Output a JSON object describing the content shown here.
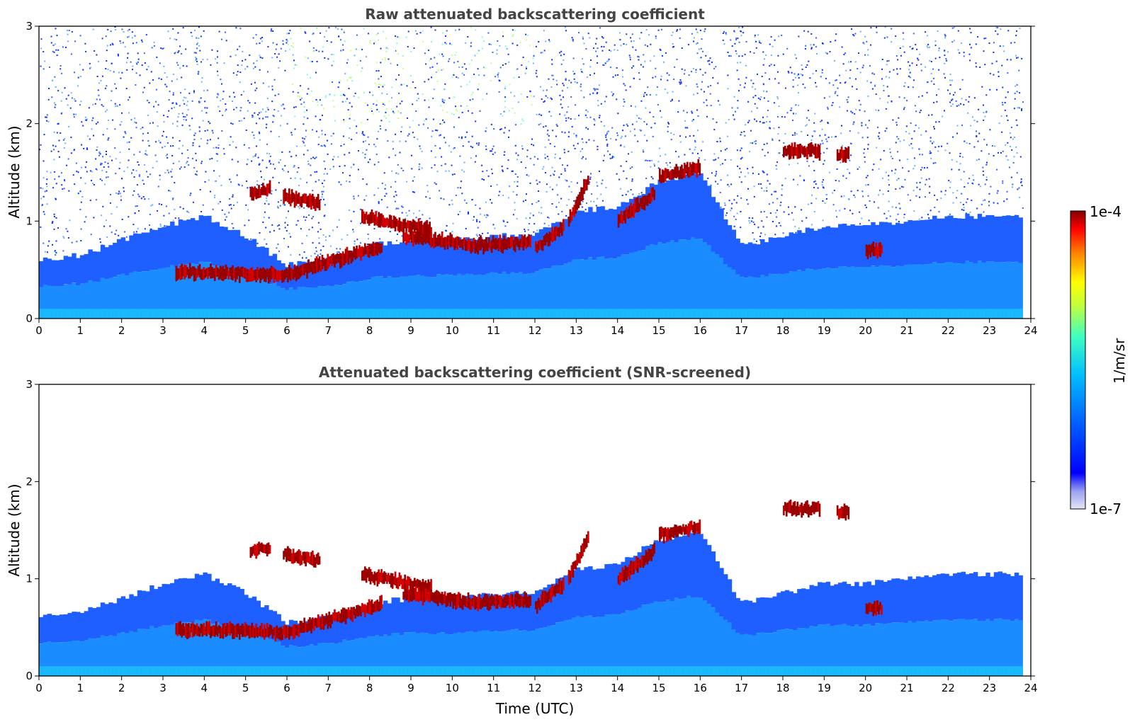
{
  "chart_data": [
    {
      "type": "heatmap",
      "title": "Raw attenuated backscattering coefficient",
      "xlabel": "",
      "ylabel": "Altitude (km)",
      "xlim": [
        0,
        24
      ],
      "ylim": [
        0,
        3
      ],
      "x_ticks": [
        "0",
        "1",
        "2",
        "3",
        "4",
        "5",
        "6",
        "7",
        "8",
        "9",
        "10",
        "11",
        "12",
        "13",
        "14",
        "15",
        "16",
        "17",
        "18",
        "19",
        "20",
        "21",
        "22",
        "23",
        "24"
      ],
      "y_ticks": [
        "0",
        "1",
        "2",
        "3"
      ],
      "data_end_time": 23.8,
      "background_noise": true,
      "aerosol_layer_top_km": {
        "time": [
          0,
          1,
          2,
          3,
          4,
          5,
          6,
          7,
          8,
          9,
          10,
          11,
          12,
          13,
          14,
          15,
          16,
          17,
          18,
          19,
          20,
          21,
          22,
          23,
          23.8
        ],
        "values": [
          0.6,
          0.65,
          0.8,
          0.95,
          1.05,
          0.85,
          0.55,
          0.6,
          0.75,
          0.8,
          0.8,
          0.85,
          0.85,
          1.1,
          1.15,
          1.4,
          1.5,
          0.75,
          0.85,
          0.95,
          0.95,
          1.0,
          1.05,
          1.05,
          1.05
        ]
      },
      "cloud_segments": [
        {
          "t0": 3.3,
          "t1": 6.0,
          "a0": 0.48,
          "a1": 0.45
        },
        {
          "t0": 6.0,
          "t1": 8.3,
          "a0": 0.45,
          "a1": 0.75
        },
        {
          "t0": 7.8,
          "t1": 9.5,
          "a0": 1.05,
          "a1": 0.9
        },
        {
          "t0": 8.8,
          "t1": 10.5,
          "a0": 0.85,
          "a1": 0.75
        },
        {
          "t0": 10.5,
          "t1": 11.9,
          "a0": 0.75,
          "a1": 0.78
        },
        {
          "t0": 12.0,
          "t1": 12.7,
          "a0": 0.72,
          "a1": 0.95
        },
        {
          "t0": 12.8,
          "t1": 13.3,
          "a0": 1.0,
          "a1": 1.45
        },
        {
          "t0": 14.0,
          "t1": 14.9,
          "a0": 1.0,
          "a1": 1.3
        },
        {
          "t0": 15.0,
          "t1": 16.0,
          "a0": 1.45,
          "a1": 1.55
        },
        {
          "t0": 18.0,
          "t1": 18.9,
          "a0": 1.72,
          "a1": 1.72
        },
        {
          "t0": 19.3,
          "t1": 19.6,
          "a0": 1.68,
          "a1": 1.68
        },
        {
          "t0": 20.0,
          "t1": 20.4,
          "a0": 0.7,
          "a1": 0.7
        },
        {
          "t0": 5.1,
          "t1": 5.6,
          "a0": 1.28,
          "a1": 1.33
        },
        {
          "t0": 5.9,
          "t1": 6.8,
          "a0": 1.25,
          "a1": 1.18
        }
      ]
    },
    {
      "type": "heatmap",
      "title": "Attenuated backscattering coefficient (SNR-screened)",
      "xlabel": "Time (UTC)",
      "ylabel": "Altitude (km)",
      "xlim": [
        0,
        24
      ],
      "ylim": [
        0,
        3
      ],
      "x_ticks": [
        "0",
        "1",
        "2",
        "3",
        "4",
        "5",
        "6",
        "7",
        "8",
        "9",
        "10",
        "11",
        "12",
        "13",
        "14",
        "15",
        "16",
        "17",
        "18",
        "19",
        "20",
        "21",
        "22",
        "23",
        "24"
      ],
      "y_ticks": [
        "0",
        "1",
        "2",
        "3"
      ],
      "data_end_time": 23.8,
      "background_noise": false,
      "aerosol_layer_top_km": {
        "time": [
          0,
          1,
          2,
          3,
          4,
          5,
          6,
          7,
          8,
          9,
          10,
          11,
          12,
          13,
          14,
          15,
          16,
          17,
          18,
          19,
          20,
          21,
          22,
          23,
          23.8
        ],
        "values": [
          0.6,
          0.65,
          0.8,
          0.95,
          1.05,
          0.85,
          0.55,
          0.6,
          0.75,
          0.8,
          0.8,
          0.85,
          0.85,
          1.1,
          1.15,
          1.4,
          1.5,
          0.75,
          0.85,
          0.95,
          0.95,
          1.0,
          1.05,
          1.05,
          1.05
        ]
      },
      "cloud_segments": [
        {
          "t0": 3.3,
          "t1": 6.0,
          "a0": 0.48,
          "a1": 0.45
        },
        {
          "t0": 6.0,
          "t1": 8.3,
          "a0": 0.45,
          "a1": 0.75
        },
        {
          "t0": 7.8,
          "t1": 9.5,
          "a0": 1.05,
          "a1": 0.9
        },
        {
          "t0": 8.8,
          "t1": 10.5,
          "a0": 0.85,
          "a1": 0.75
        },
        {
          "t0": 10.5,
          "t1": 11.9,
          "a0": 0.75,
          "a1": 0.78
        },
        {
          "t0": 12.0,
          "t1": 12.7,
          "a0": 0.72,
          "a1": 0.95
        },
        {
          "t0": 12.8,
          "t1": 13.3,
          "a0": 1.0,
          "a1": 1.45
        },
        {
          "t0": 14.0,
          "t1": 14.9,
          "a0": 1.0,
          "a1": 1.3
        },
        {
          "t0": 15.0,
          "t1": 16.0,
          "a0": 1.45,
          "a1": 1.55
        },
        {
          "t0": 18.0,
          "t1": 18.9,
          "a0": 1.72,
          "a1": 1.72
        },
        {
          "t0": 19.3,
          "t1": 19.6,
          "a0": 1.68,
          "a1": 1.68
        },
        {
          "t0": 20.0,
          "t1": 20.4,
          "a0": 0.7,
          "a1": 0.7
        },
        {
          "t0": 5.1,
          "t1": 5.6,
          "a0": 1.28,
          "a1": 1.33
        },
        {
          "t0": 5.9,
          "t1": 6.8,
          "a0": 1.25,
          "a1": 1.18
        }
      ]
    }
  ],
  "colorbar": {
    "top_label": "1e-4",
    "bottom_label": "1e-7",
    "unit": "1/m/sr",
    "colors": [
      "#e6e6f7",
      "#0000ff",
      "#0066ff",
      "#00bfff",
      "#40ffbf",
      "#bfff40",
      "#ffff00",
      "#ff8000",
      "#ff0000",
      "#800000"
    ]
  }
}
